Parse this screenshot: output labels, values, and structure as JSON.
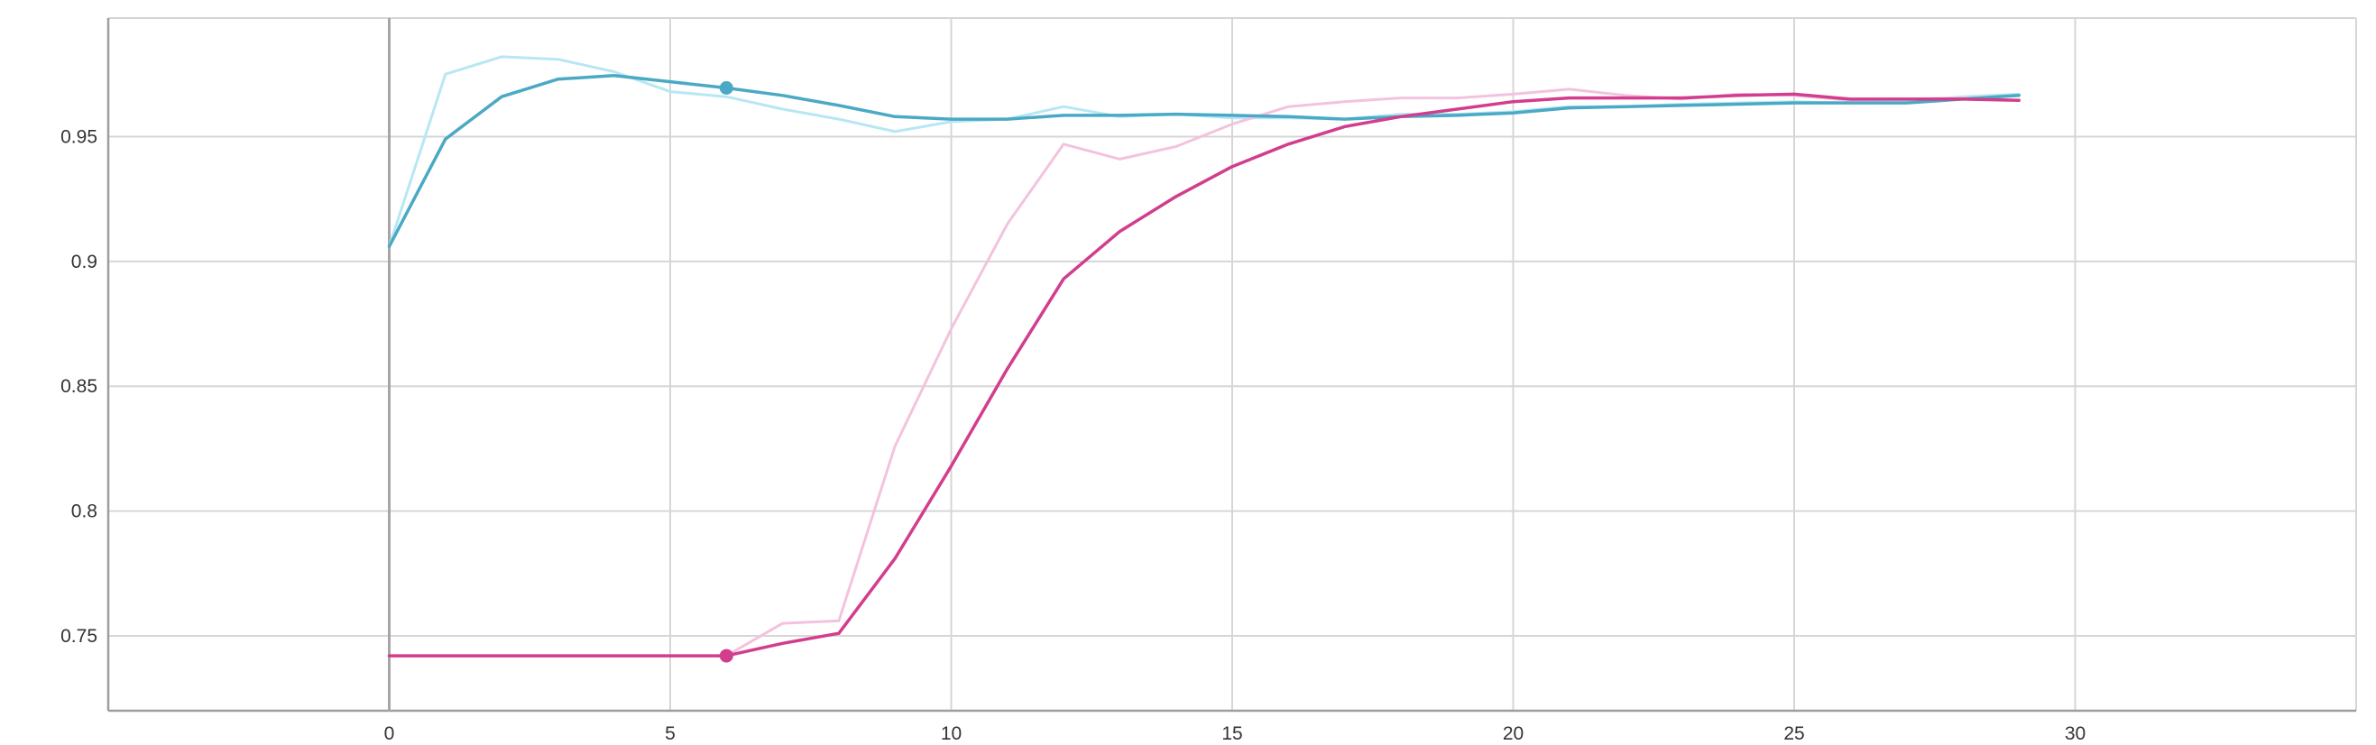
{
  "chart_data": {
    "type": "line",
    "title": "",
    "xlabel": "",
    "ylabel": "",
    "xlim": [
      -5,
      35
    ],
    "ylim": [
      0.72,
      0.9975
    ],
    "x_ticks": [
      0,
      5,
      10,
      15,
      20,
      25,
      30
    ],
    "y_ticks": [
      0.75,
      0.8,
      0.85,
      0.9,
      0.95
    ],
    "x_tick_labels": [
      "0",
      "5",
      "10",
      "15",
      "20",
      "25",
      "30"
    ],
    "y_tick_labels": [
      "0.75",
      "0.8",
      "0.85",
      "0.9",
      "0.95"
    ],
    "grid": true,
    "legend": "none",
    "hover_x": 6,
    "series": [
      {
        "color": "#4aa9c4",
        "role": "smoothed",
        "x": [
          0,
          1,
          2,
          3,
          4,
          5,
          6,
          7,
          8,
          9,
          10,
          11,
          12,
          13,
          14,
          15,
          16,
          17,
          18,
          19,
          20,
          21,
          22,
          23,
          24,
          25,
          26,
          27,
          28,
          29
        ],
        "values": [
          0.906,
          0.949,
          0.966,
          0.973,
          0.9745,
          0.972,
          0.9695,
          0.9665,
          0.9625,
          0.958,
          0.957,
          0.957,
          0.9585,
          0.9585,
          0.959,
          0.9585,
          0.958,
          0.957,
          0.958,
          0.9585,
          0.9595,
          0.9615,
          0.962,
          0.9625,
          0.963,
          0.9635,
          0.9635,
          0.9635,
          0.965,
          0.9665
        ]
      },
      {
        "color": "#b7e7f4",
        "role": "raw",
        "x": [
          0,
          1,
          2,
          3,
          4,
          5,
          6,
          7,
          8,
          9,
          10,
          11,
          12,
          13,
          14,
          15,
          16,
          17,
          18,
          19,
          20,
          21,
          22,
          23,
          24,
          25,
          26,
          27,
          28,
          29
        ],
        "values": [
          0.906,
          0.975,
          0.982,
          0.981,
          0.976,
          0.968,
          0.966,
          0.961,
          0.957,
          0.952,
          0.956,
          0.957,
          0.962,
          0.958,
          0.959,
          0.9575,
          0.9575,
          0.957,
          0.959,
          0.959,
          0.96,
          0.962,
          0.962,
          0.963,
          0.9635,
          0.964,
          0.9635,
          0.964,
          0.966,
          0.967
        ]
      },
      {
        "color": "#d23d8d",
        "role": "smoothed",
        "x": [
          0,
          1,
          2,
          3,
          4,
          5,
          6,
          7,
          8,
          9,
          10,
          11,
          12,
          13,
          14,
          15,
          16,
          17,
          18,
          19,
          20,
          21,
          22,
          23,
          24,
          25,
          26,
          27,
          28,
          29
        ],
        "values": [
          0.742,
          0.742,
          0.742,
          0.742,
          0.742,
          0.742,
          0.742,
          0.747,
          0.751,
          0.781,
          0.818,
          0.857,
          0.893,
          0.912,
          0.926,
          0.938,
          0.947,
          0.954,
          0.958,
          0.961,
          0.964,
          0.9655,
          0.9655,
          0.9655,
          0.9665,
          0.967,
          0.965,
          0.965,
          0.965,
          0.9645
        ]
      },
      {
        "color": "#f3c3dd",
        "role": "raw",
        "x": [
          0,
          1,
          2,
          3,
          4,
          5,
          6,
          7,
          8,
          9,
          10,
          11,
          12,
          13,
          14,
          15,
          16,
          17,
          18,
          19,
          20,
          21,
          22,
          23,
          24,
          25,
          26,
          27,
          28,
          29
        ],
        "values": [
          0.742,
          0.742,
          0.742,
          0.742,
          0.742,
          0.742,
          0.742,
          0.755,
          0.756,
          0.826,
          0.873,
          0.915,
          0.947,
          0.941,
          0.946,
          0.955,
          0.962,
          0.964,
          0.9655,
          0.9655,
          0.967,
          0.969,
          0.9665,
          0.965,
          0.967,
          0.9665,
          0.9645,
          0.965,
          0.9655,
          0.9645
        ]
      }
    ]
  }
}
